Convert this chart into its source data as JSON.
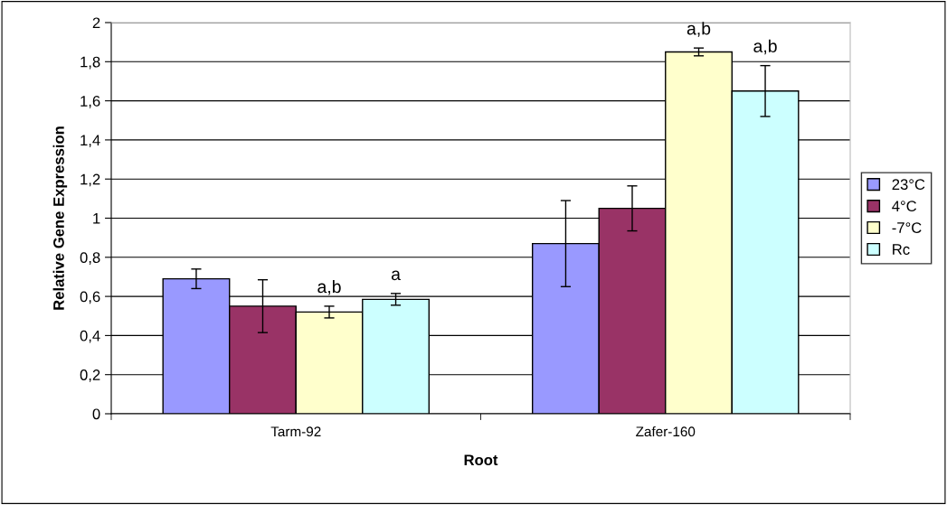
{
  "chart_data": {
    "type": "bar",
    "xlabel": "Root",
    "ylabel": "Relative Gene Expression",
    "categories": [
      "Tarm-92",
      "Zafer-160"
    ],
    "series": [
      {
        "name": "23°C",
        "color": "#9999ff",
        "values": [
          0.69,
          0.87
        ],
        "errors": [
          0.05,
          0.22
        ]
      },
      {
        "name": "4°C",
        "color": "#993366",
        "values": [
          0.55,
          1.05
        ],
        "errors": [
          0.135,
          0.115
        ]
      },
      {
        "name": "-7°C",
        "color": "#ffffcc",
        "values": [
          0.52,
          1.85
        ],
        "errors": [
          0.03,
          0.02
        ],
        "value_labels": [
          "a,b",
          "a,b"
        ]
      },
      {
        "name": "Rc",
        "color": "#ccffff",
        "values": [
          0.585,
          1.65
        ],
        "errors": [
          0.03,
          0.13
        ],
        "value_labels": [
          "a",
          "a,b"
        ]
      }
    ],
    "ylim": [
      0,
      2
    ],
    "yticks": [
      0,
      {
        "value": 0.2,
        "label": "0,2"
      },
      {
        "value": 0.4,
        "label": "0,4"
      },
      {
        "value": 0.6,
        "label": "0,6"
      },
      {
        "value": 0.8,
        "label": "0,8"
      },
      1,
      {
        "value": 1.2,
        "label": "1,2"
      },
      {
        "value": 1.4,
        "label": "1,4"
      },
      {
        "value": 1.6,
        "label": "1,6"
      },
      {
        "value": 1.8,
        "label": "1,8"
      },
      2
    ],
    "grid": "y",
    "legend": "right"
  }
}
